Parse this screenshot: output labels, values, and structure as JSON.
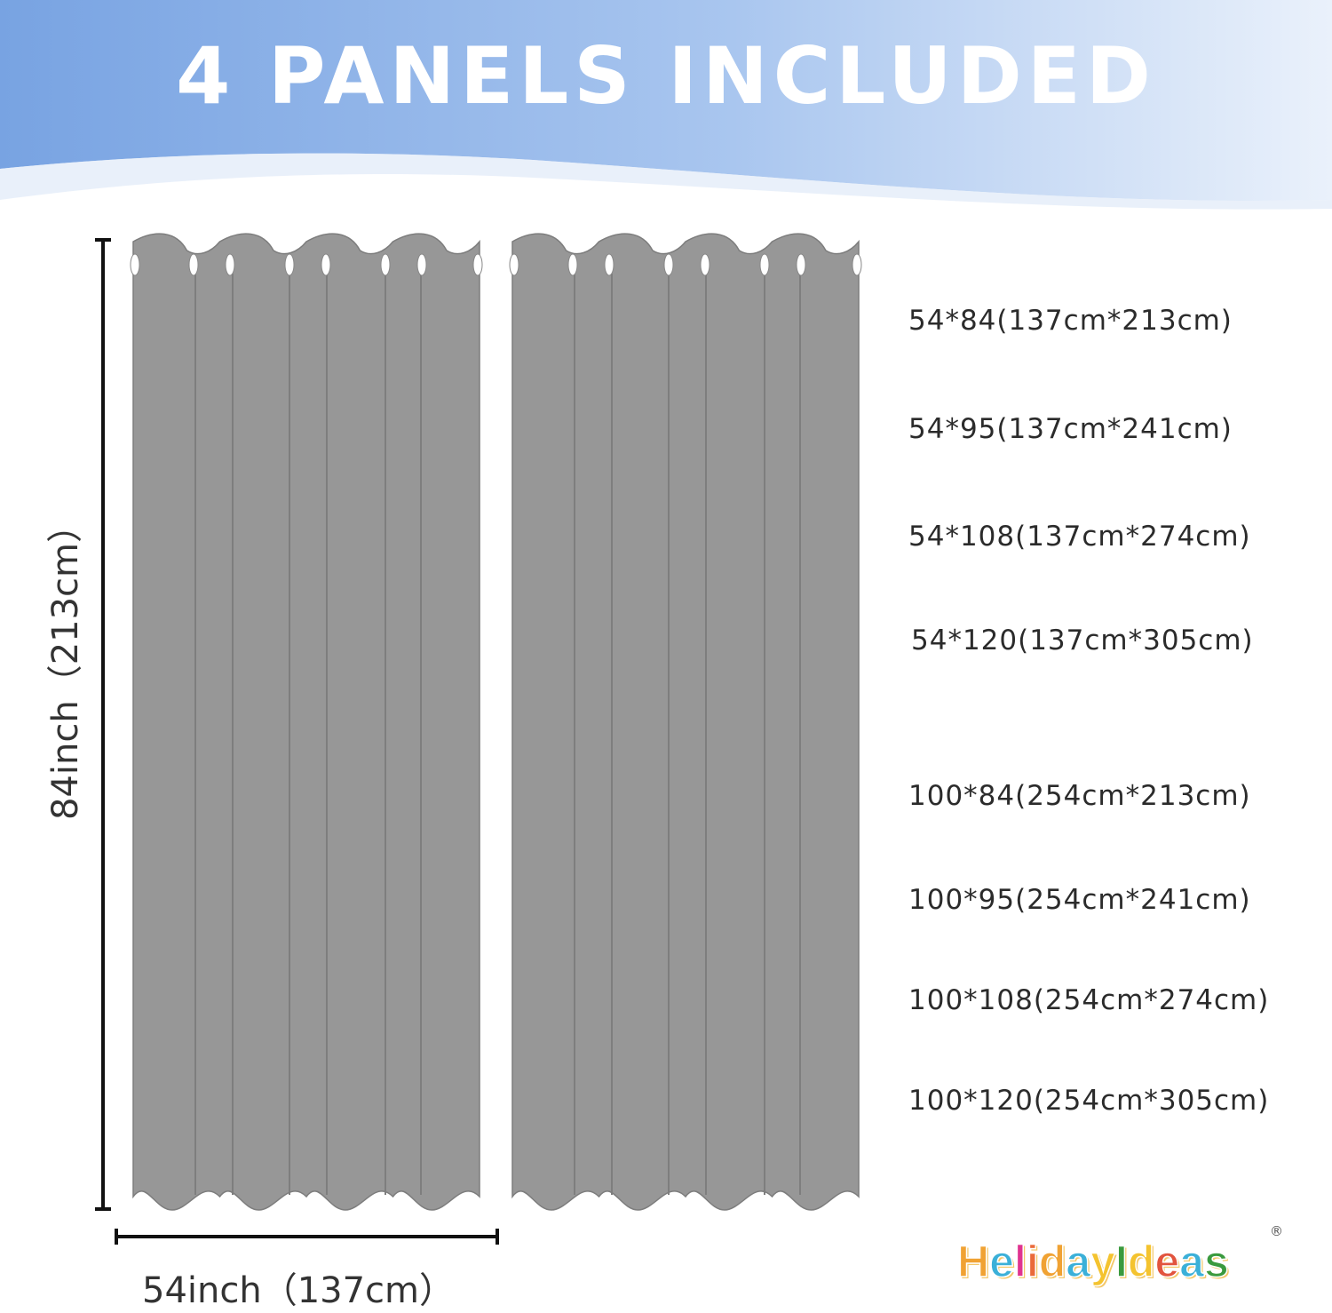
{
  "banner": {
    "title": "4 PANELS INCLUDED",
    "colors": {
      "left": "#7aa4e2",
      "right": "#eef3fb"
    }
  },
  "curtain": {
    "color": "#979797",
    "panel_count_shown": 2
  },
  "dimensions": {
    "height_label": "84inch（213cm）",
    "width_label": "54inch（137cm）"
  },
  "sizes": [
    "54*84(137cm*213cm)",
    "54*95(137cm*241cm)",
    "54*108(137cm*274cm)",
    "54*120(137cm*305cm)",
    "100*84(254cm*213cm)",
    "100*95(254cm*241cm)",
    "100*108(254cm*274cm)",
    "100*120(254cm*305cm)"
  ],
  "logo": {
    "text": "HelidayIdeas",
    "registered": "®"
  }
}
